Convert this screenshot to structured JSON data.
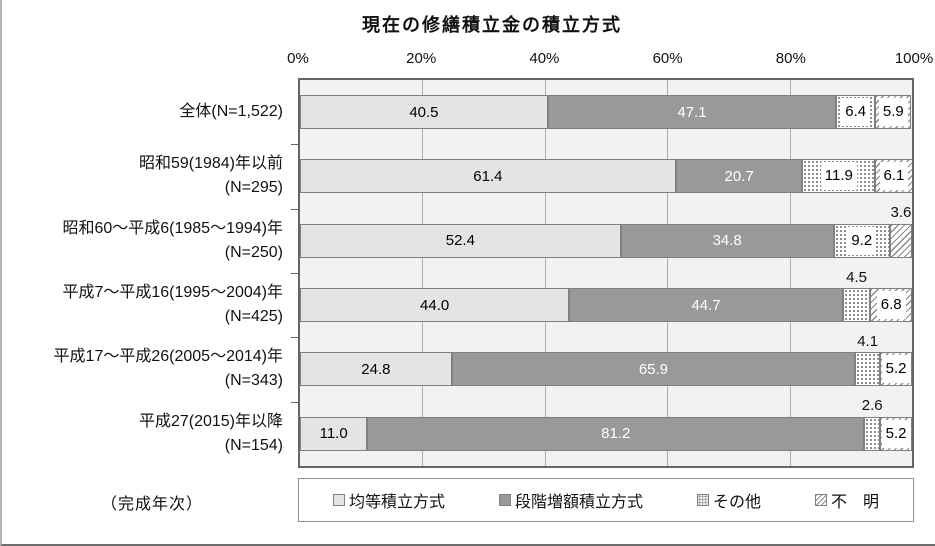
{
  "colors": {
    "equal_fill": "#e4e4e4",
    "stepped_fill": "#999999",
    "segment_border": "#808080",
    "pattern_ink": "#8a8a8a",
    "plot_background": "#f2f2f2",
    "plot_border": "#666666",
    "gridline": "#adadad",
    "text": "#111111"
  },
  "chart_data": {
    "type": "bar",
    "orientation": "horizontal",
    "stacked": true,
    "title": "現在の修繕積立金の積立方式",
    "axis_caption": "（完成年次）",
    "xlim": [
      0,
      100
    ],
    "x_ticks": [
      "0%",
      "20%",
      "40%",
      "60%",
      "80%",
      "100%"
    ],
    "grid": "vertical",
    "legend_position": "bottom",
    "categories": [
      "全体(N=1,522)",
      "昭和59(1984)年以前\n(N=295)",
      "昭和60～平成6(1985～1994)年\n(N=250)",
      "平成7～平成16(1995～2004)年\n(N=425)",
      "平成17～平成26(2005～2014)年\n(N=343)",
      "平成27(2015)年以降\n(N=154)"
    ],
    "series": [
      {
        "name": "均等積立方式",
        "style": "light",
        "values": [
          40.5,
          61.4,
          52.4,
          44.0,
          24.8,
          11.0
        ],
        "labels": [
          "40.5",
          "61.4",
          "52.4",
          "44.0",
          "24.8",
          "11.0"
        ]
      },
      {
        "name": "段階増額積立方式",
        "style": "dark",
        "values": [
          47.1,
          20.7,
          34.8,
          44.7,
          65.9,
          81.2
        ],
        "labels": [
          "47.1",
          "20.7",
          "34.8",
          "44.7",
          "65.9",
          "81.2"
        ]
      },
      {
        "name": "その他",
        "style": "dots",
        "values": [
          6.4,
          11.9,
          9.2,
          4.5,
          4.1,
          2.6
        ],
        "labels": [
          "6.4",
          "11.9",
          "9.2",
          "4.5",
          "4.1",
          "2.6"
        ]
      },
      {
        "name": "不　明",
        "style": "hatch",
        "values": [
          5.9,
          6.1,
          3.6,
          6.8,
          5.2,
          5.2
        ],
        "labels": [
          "5.9",
          "6.1",
          "3.6",
          "6.8",
          "5.2",
          "5.2"
        ]
      }
    ]
  }
}
